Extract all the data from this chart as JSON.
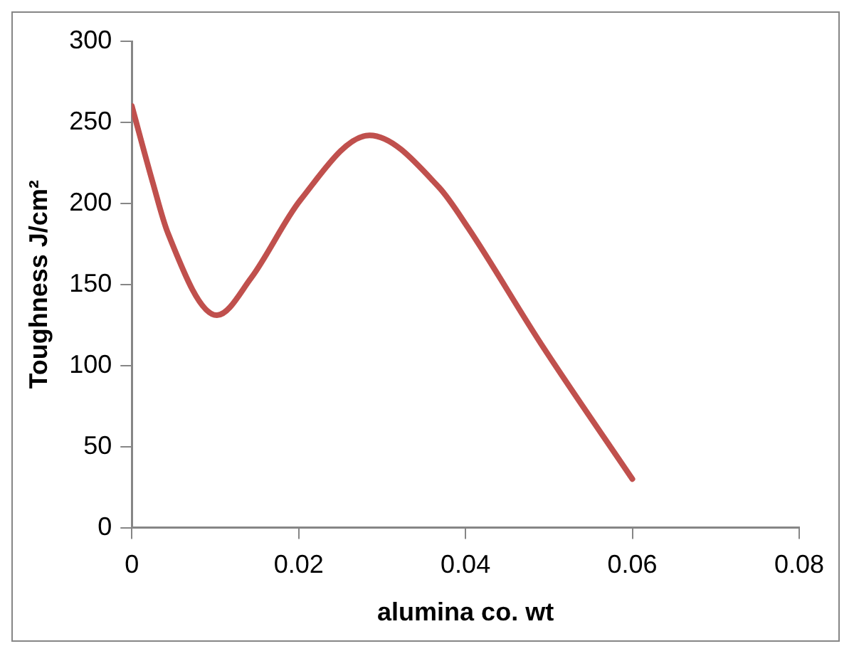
{
  "chart_data": {
    "type": "line",
    "xlabel": "alumina co. wt",
    "ylabel": "Toughness J/cm²",
    "x": [
      0,
      0.0025,
      0.0043,
      0.0102,
      0.0143,
      0.0202,
      0.0285,
      0.0368,
      0.0403,
      0.0491,
      0.06
    ],
    "series": [
      {
        "color": "#c0504d",
        "values": [
          260,
          213,
          182,
          131,
          154,
          202,
          242,
          210,
          185,
          113,
          30
        ]
      }
    ],
    "xlim": [
      0,
      0.08
    ],
    "xticks": [
      0,
      0.02,
      0.04,
      0.06,
      0.08
    ],
    "ylim": [
      0,
      300
    ],
    "yticks": [
      0,
      50,
      100,
      150,
      200,
      250,
      300
    ],
    "grid": false,
    "legend": false,
    "marker": "none",
    "line_style": "solid"
  }
}
